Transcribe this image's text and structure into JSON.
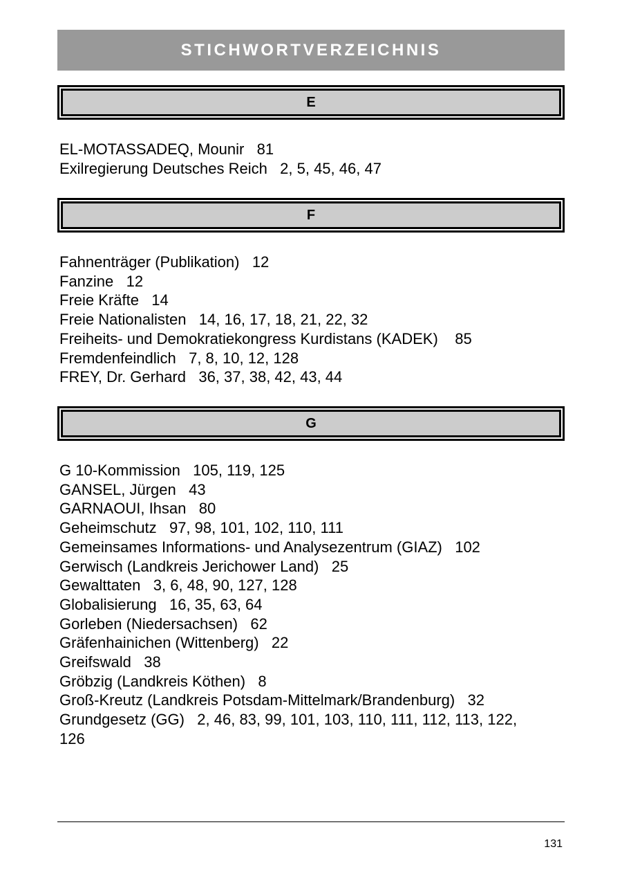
{
  "title": "STICHWORTVERZEICHNIS",
  "sections": [
    {
      "letter": "E",
      "entries": [
        "EL-MOTASSADEQ, Mounir   81",
        "Exilregierung Deutsches Reich   2, 5, 45, 46, 47"
      ]
    },
    {
      "letter": "F",
      "entries": [
        "Fahnenträger (Publikation)   12",
        "Fanzine   12",
        "Freie Kräfte   14",
        "Freie Nationalisten   14, 16, 17, 18, 21, 22, 32",
        "Freiheits- und Demokratiekongress Kurdistans (KADEK)    85",
        "Fremdenfeindlich   7, 8, 10, 12, 128",
        "FREY, Dr. Gerhard   36, 37, 38, 42, 43, 44"
      ]
    },
    {
      "letter": "G",
      "entries": [
        "G 10-Kommission   105, 119, 125",
        "GANSEL, Jürgen   43",
        "GARNAOUI, Ihsan   80",
        "Geheimschutz   97, 98, 101, 102, 110, 111",
        "Gemeinsames Informations- und Analysezentrum (GIAZ)   102",
        "Gerwisch (Landkreis Jerichower Land)   25",
        "Gewalttaten   3, 6, 48, 90, 127, 128",
        "Globalisierung   16, 35, 63, 64",
        "Gorleben (Niedersachsen)   62",
        "Gräfenhainichen (Wittenberg)   22",
        "Greifswald   38",
        "Gröbzig (Landkreis Köthen)   8",
        "Groß-Kreutz (Landkreis Potsdam-Mittelmark/Brandenburg)   32",
        "Grundgesetz (GG)   2, 46, 83, 99, 101, 103, 110, 111, 112, 113, 122, 126"
      ]
    }
  ],
  "page_number": "131"
}
